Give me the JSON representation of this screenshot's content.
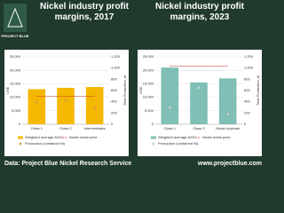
{
  "logo": "PROJECT BLUE",
  "footer": {
    "source": "Data: Project Blue Nickel Research Service",
    "url": "www.projectblue.com"
  },
  "chart_data": [
    {
      "type": "bar",
      "title": "Nickel industry profit margins, 2017",
      "ylabel": "US$",
      "y2label": "Total Production, kt",
      "categories": [
        "Class 1",
        "Class 2",
        "Intermediates"
      ],
      "series": [
        {
          "name": "Weighted average AISC",
          "color": "#f5b800",
          "kind": "bar",
          "values": [
            13000,
            13500,
            13800
          ]
        },
        {
          "name": "Nickel metal price",
          "color": "#c0392b",
          "kind": "line",
          "values": [
            10400,
            10400,
            10400
          ]
        },
        {
          "name": "Production (contained Ni)",
          "color": "#e8a33a",
          "kind": "scatter",
          "axis": "y2",
          "values": [
            390,
            430,
            280
          ]
        }
      ],
      "ylim": [
        0,
        25000
      ],
      "yticks": [
        0,
        {
          "value": 5000,
          "label": "5,000"
        },
        {
          "value": 10000,
          "label": "10,000"
        },
        {
          "value": 15000,
          "label": "15,000"
        },
        {
          "value": 20000,
          "label": "20,000"
        },
        {
          "value": 25000,
          "label": "25,000"
        }
      ],
      "y2lim": [
        0,
        1200
      ],
      "y2ticks": [
        0,
        200,
        400,
        600,
        800,
        {
          "value": 1000,
          "label": "1,000"
        },
        {
          "value": 1200,
          "label": "1,200"
        }
      ],
      "grid": true
    },
    {
      "type": "bar",
      "title": "Nickel industry profit margins, 2023",
      "ylabel": "US$",
      "y2label": "Total Production, kt",
      "categories": [
        "Class 1",
        "Class 2",
        "Nickel sulphate"
      ],
      "series": [
        {
          "name": "Weighted average AISC",
          "color": "#7fbfb5",
          "kind": "bar",
          "values": [
            21000,
            15500,
            17000
          ]
        },
        {
          "name": "Nickel metal price",
          "color": "#c0392b",
          "kind": "line",
          "values": [
            21500,
            21500,
            21500
          ]
        },
        {
          "name": "Production (contained Ni)",
          "color": "#cfe6e2",
          "kind": "scatter",
          "axis": "y2",
          "values": [
            300,
            650,
            180
          ]
        }
      ],
      "ylim": [
        0,
        25000
      ],
      "yticks": [
        0,
        {
          "value": 5000,
          "label": "5,000"
        },
        {
          "value": 10000,
          "label": "10,000"
        },
        {
          "value": 15000,
          "label": "15,000"
        },
        {
          "value": 20000,
          "label": "20,000"
        },
        {
          "value": 25000,
          "label": "25,000"
        }
      ],
      "y2lim": [
        0,
        1200
      ],
      "y2ticks": [
        0,
        200,
        400,
        600,
        800,
        {
          "value": 1000,
          "label": "1,000"
        },
        {
          "value": 1200,
          "label": "1,200"
        }
      ],
      "grid": true
    }
  ]
}
